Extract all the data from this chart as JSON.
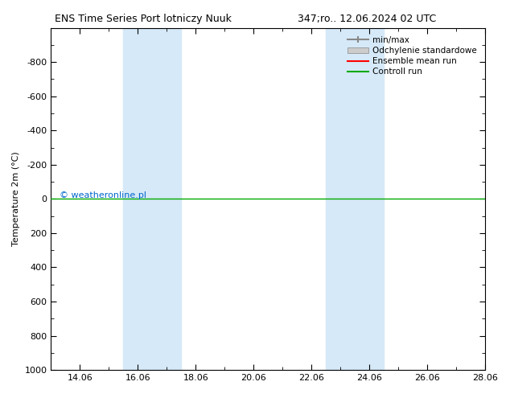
{
  "title_left": "ENS Time Series Port lotniczy Nuuk",
  "title_right": "347;ro.. 12.06.2024 02 UTC",
  "ylabel": "Temperature 2m (°C)",
  "xlim_start": "2024-06-13",
  "xlim_end": "2024-06-28",
  "ylim": [
    -1000,
    1000
  ],
  "yticks": [
    -800,
    -600,
    -400,
    -200,
    0,
    200,
    400,
    600,
    800,
    1000
  ],
  "xtick_labels": [
    "14.06",
    "16.06",
    "18.06",
    "20.06",
    "22.06",
    "24.06",
    "26.06",
    "28.06"
  ],
  "xtick_positions": [
    1,
    3,
    5,
    7,
    9,
    11,
    13,
    15
  ],
  "shaded_regions": [
    {
      "x_start": 2.5,
      "x_end": 4.5
    },
    {
      "x_start": 9.5,
      "x_end": 11.5
    }
  ],
  "horizontal_line_y": 0,
  "horizontal_line_color": "#00aa00",
  "ensemble_mean_color": "#ff0000",
  "control_run_color": "#00aa00",
  "min_max_color": "#888888",
  "std_dev_color": "#cccccc",
  "watermark": "© weatheronline.pl",
  "watermark_color": "#0066cc",
  "background_color": "#ffffff",
  "legend_entries": [
    "min/max",
    "Odchylenie standardowe",
    "Ensemble mean run",
    "Controll run"
  ],
  "legend_colors": [
    "#888888",
    "#cccccc",
    "#ff0000",
    "#00aa00"
  ]
}
